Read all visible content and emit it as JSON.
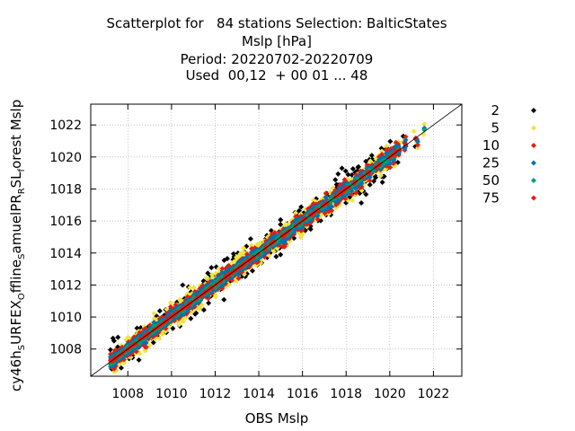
{
  "chart_data": {
    "type": "scatter",
    "title_lines": [
      "Scatterplot for   84 stations Selection: BalticStates",
      "Mslp [hPa]",
      "Period: 20220702-20220709",
      "Used  00,12  + 00 01 ... 48"
    ],
    "xlabel": "OBS Mslp",
    "ylabel_parts": [
      "cy46h",
      "S",
      "URFEX",
      "O",
      "ffline",
      "S",
      "amuelPR",
      "R",
      "SL",
      "f",
      "orest Mslp"
    ],
    "xlim": [
      1006.3,
      1023.3
    ],
    "ylim": [
      1006.3,
      1023.3
    ],
    "xticks": [
      1008,
      1010,
      1012,
      1014,
      1016,
      1018,
      1020,
      1022
    ],
    "yticks": [
      1008,
      1010,
      1012,
      1014,
      1016,
      1018,
      1020,
      1022
    ],
    "grid": true,
    "diagonal": true,
    "legend_placement": "right",
    "series": [
      {
        "name": "2",
        "color": "#000000",
        "band": 1.9,
        "count": 420
      },
      {
        "name": "5",
        "color": "#f0e442",
        "band": 1.3,
        "count": 900
      },
      {
        "name": "10",
        "color": "#e51e10",
        "band": 0.95,
        "count": 900
      },
      {
        "name": "25",
        "color": "#0072b2",
        "band": 0.6,
        "count": 1300
      },
      {
        "name": "50",
        "color": "#009e73",
        "band": 0.3,
        "count": 500
      },
      {
        "name": "75",
        "color": "#e51e10",
        "band": 0.12,
        "count": 180
      }
    ]
  }
}
